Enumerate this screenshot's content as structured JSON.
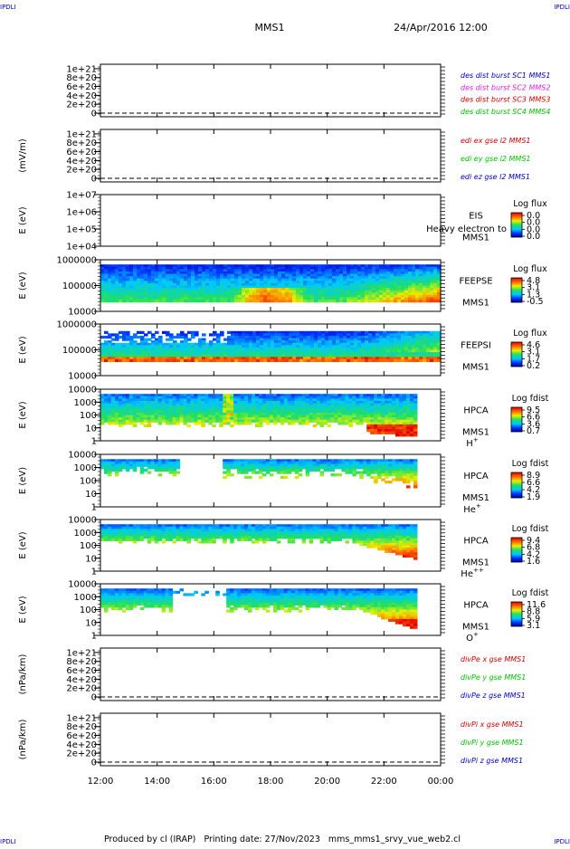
{
  "header": {
    "corner_left": "IPDLI",
    "corner_right": "IPDLI",
    "mission": "MMS1",
    "datetime": "24/Apr/2016 12:00"
  },
  "footer": {
    "corner_left": "IPDLI",
    "corner_right": "IPDLI",
    "credit": "Produced by cl (IRAP)   Printing date: 27/Nov/2023   mms_mms1_srvy_vue_web2.cl"
  },
  "chart_data": [
    {
      "id": "p1",
      "type": "line",
      "ylabel": "",
      "yticks": [
        "1e+21",
        "8e+20",
        "6e+20",
        "4e+20",
        "2e+20",
        "0"
      ],
      "yrange": [
        0,
        1.1e+21
      ],
      "legend": [
        {
          "text": "des dist burst SC1 MMS1",
          "color": "#0000c8"
        },
        {
          "text": "des dist burst SC2 MMS2",
          "color": "#e020e0"
        },
        {
          "text": "des dist burst SC3 MMS3",
          "color": "#d00000"
        },
        {
          "text": "des dist burst SC4 MMS4",
          "color": "#00c000"
        }
      ],
      "series": []
    },
    {
      "id": "p2",
      "type": "line",
      "ylabel": "(mV/m)",
      "yticks": [
        "1e+21",
        "8e+20",
        "6e+20",
        "4e+20",
        "2e+20",
        "0"
      ],
      "yrange": [
        0,
        1.1e+21
      ],
      "legend": [
        {
          "text": "edi ex gse l2 MMS1",
          "color": "#d00000"
        },
        {
          "text": "edi ey gse l2 MMS1",
          "color": "#00c000"
        },
        {
          "text": "edi ez gse l2 MMS1",
          "color": "#0000c8"
        }
      ],
      "series": []
    },
    {
      "id": "p3",
      "type": "heatmap",
      "ylabel": "E (eV)",
      "yticks": [
        "1e+07",
        "1e+06",
        "1e+05",
        "1e+04"
      ],
      "instrument": [
        "EIS",
        "MMS1"
      ],
      "overlap_text": "Heavy electron to",
      "colorbar": {
        "title": "Log flux",
        "ticks": [
          "0.0",
          "0.0",
          "0.0",
          "0.0"
        ]
      },
      "coverage": "none"
    },
    {
      "id": "p4",
      "type": "heatmap",
      "ylabel": "E (eV)",
      "yticks": [
        "1000000",
        "100000",
        "10000"
      ],
      "instrument": [
        "FEEPSE",
        "MMS1"
      ],
      "colorbar": {
        "title": "Log flux",
        "ticks": [
          "4.8",
          "3.1",
          "1.3",
          "-0.5"
        ]
      },
      "coverage": "12:00-23:59"
    },
    {
      "id": "p5",
      "type": "heatmap",
      "ylabel": "E (eV)",
      "yticks": [
        "1000000",
        "100000",
        "10000"
      ],
      "instrument": [
        "FEEPSI",
        "MMS1"
      ],
      "colorbar": {
        "title": "Log flux",
        "ticks": [
          "4.6",
          "3.1",
          "1.7",
          "0.2"
        ]
      },
      "coverage": "12:00-23:59"
    },
    {
      "id": "p6",
      "type": "heatmap",
      "ylabel": "E (eV)",
      "yticks": [
        "10000",
        "1000",
        "100",
        "10",
        "1"
      ],
      "instrument": [
        "HPCA",
        "MMS1"
      ],
      "species": "H",
      "species_sup": "+",
      "colorbar": {
        "title": "Log fdist",
        "ticks": [
          "9.5",
          "6.6",
          "3.6",
          "0.7"
        ]
      },
      "coverage": "12:00-23:10"
    },
    {
      "id": "p7",
      "type": "heatmap",
      "ylabel": "E (eV)",
      "yticks": [
        "10000",
        "1000",
        "100",
        "10",
        "1"
      ],
      "instrument": [
        "HPCA",
        "MMS1"
      ],
      "species": "He",
      "species_sup": "+",
      "colorbar": {
        "title": "Log fdist",
        "ticks": [
          "8.9",
          "6.6",
          "4.2",
          "1.9"
        ]
      },
      "coverage": "12:00-23:10"
    },
    {
      "id": "p8",
      "type": "heatmap",
      "ylabel": "E (eV)",
      "yticks": [
        "10000",
        "1000",
        "100",
        "10",
        "1"
      ],
      "instrument": [
        "HPCA",
        "MMS1"
      ],
      "species": "He",
      "species_sup": "++",
      "colorbar": {
        "title": "Log fdist",
        "ticks": [
          "9.4",
          "6.8",
          "4.2",
          "1.6"
        ]
      },
      "coverage": "12:00-23:10"
    },
    {
      "id": "p9",
      "type": "heatmap",
      "ylabel": "E (eV)",
      "yticks": [
        "10000",
        "1000",
        "100",
        "10",
        "1"
      ],
      "instrument": [
        "HPCA",
        "MMS1"
      ],
      "species": "O",
      "species_sup": "+",
      "colorbar": {
        "title": "Log fdist",
        "ticks": [
          "11.6",
          "8.8",
          "5.9",
          "3.1"
        ]
      },
      "coverage": "12:00-23:10"
    },
    {
      "id": "p10",
      "type": "line",
      "ylabel": "(nPa/km)",
      "yticks": [
        "1e+21",
        "8e+20",
        "6e+20",
        "4e+20",
        "2e+20",
        "0"
      ],
      "yrange": [
        0,
        1.1e+21
      ],
      "legend": [
        {
          "text": "divPe x gse MMS1",
          "color": "#d00000"
        },
        {
          "text": "divPe y gse MMS1",
          "color": "#00c000"
        },
        {
          "text": "divPe z gse MMS1",
          "color": "#0000c8"
        }
      ],
      "series": []
    },
    {
      "id": "p11",
      "type": "line",
      "ylabel": "(nPa/km)",
      "yticks": [
        "1e+21",
        "8e+20",
        "6e+20",
        "4e+20",
        "2e+20",
        "0"
      ],
      "yrange": [
        0,
        1.1e+21
      ],
      "legend": [
        {
          "text": "divPi x gse MMS1",
          "color": "#d00000"
        },
        {
          "text": "divPi y gse MMS1",
          "color": "#00c000"
        },
        {
          "text": "divPi z gse MMS1",
          "color": "#0000c8"
        }
      ],
      "series": []
    }
  ],
  "x_axis": {
    "ticks": [
      "12:00",
      "14:00",
      "16:00",
      "18:00",
      "20:00",
      "22:00",
      "00:00"
    ]
  }
}
